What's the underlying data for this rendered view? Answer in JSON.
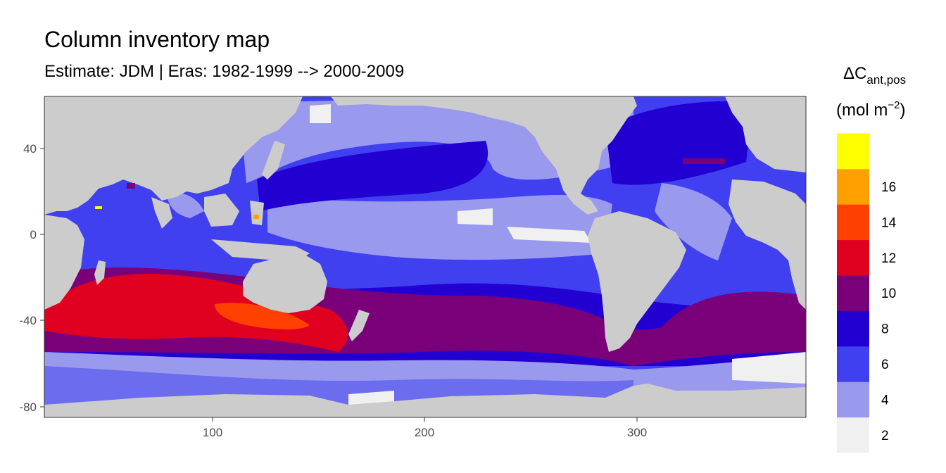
{
  "title": "Column inventory map",
  "subtitle": "Estimate: JDM  | Eras: 1982-1999 --> 2000-2009",
  "legend": {
    "title_main": "ΔC",
    "title_sub": "ant,pos",
    "unit_open": "(mol m",
    "unit_exp": "−2",
    "unit_close": ")",
    "bins": [
      {
        "color": "#f0f0f0",
        "label": "2"
      },
      {
        "color": "#9999ee",
        "label": "4"
      },
      {
        "color": "#4040f0",
        "label": "6"
      },
      {
        "color": "#2300d2",
        "label": "8"
      },
      {
        "color": "#7a007a",
        "label": "10"
      },
      {
        "color": "#e0001f",
        "label": "12"
      },
      {
        "color": "#ff4000",
        "label": "14"
      },
      {
        "color": "#ffa000",
        "label": "16"
      },
      {
        "color": "#ffff00",
        "label": ""
      }
    ]
  },
  "axes": {
    "x_ticks": [
      "100",
      "200",
      "300"
    ],
    "y_ticks": [
      "40",
      "0",
      "-40",
      "-80"
    ]
  },
  "colors": {
    "land": "#cccccc",
    "c2": "#f0f0f0",
    "c4": "#9999ee",
    "c6": "#4040f0",
    "c8": "#2300d2",
    "c10": "#7a007a",
    "c12": "#e0001f",
    "c14": "#ff4000",
    "c16": "#ffa000",
    "c18": "#ffff00"
  }
}
